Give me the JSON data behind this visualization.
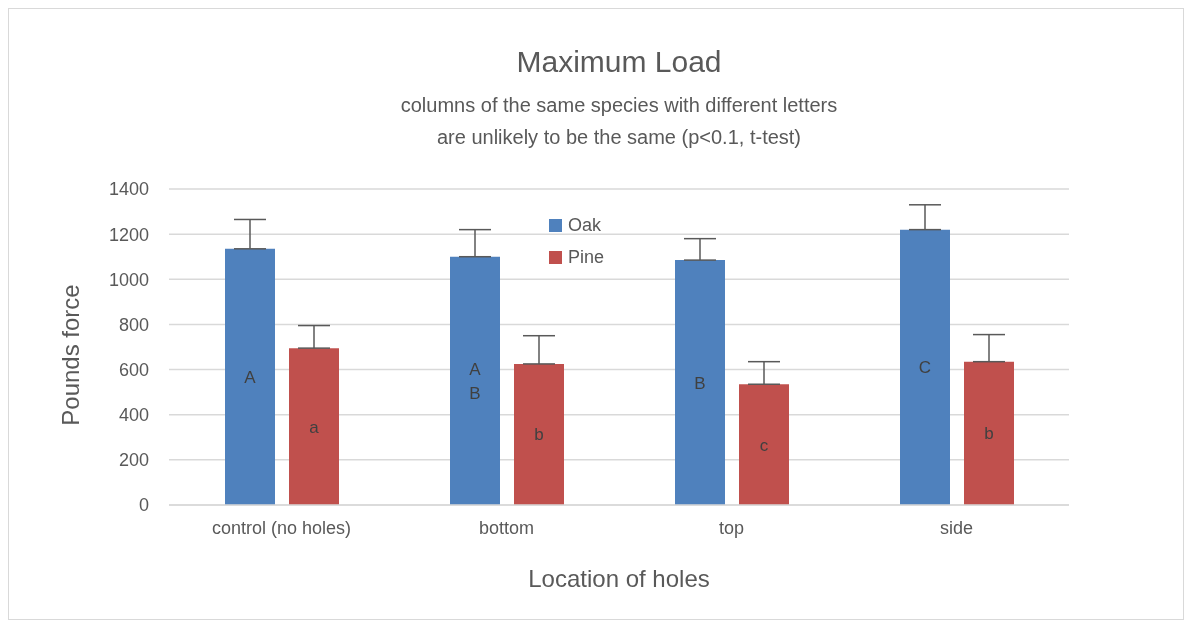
{
  "chart_data": {
    "type": "bar",
    "title": "Maximum Load",
    "subtitle": "columns of the same species with different letters\nare unlikely to be the same (p<0.1, t-test)",
    "xlabel": "Location of holes",
    "ylabel": "Pounds force",
    "categories": [
      "control (no holes)",
      "bottom",
      "top",
      "side"
    ],
    "series": [
      {
        "name": "Oak",
        "color": "#4f81bd",
        "values": [
          1135,
          1100,
          1085,
          1220
        ],
        "errors": [
          130,
          120,
          95,
          110
        ],
        "value_labels": [
          "A",
          "A\nB",
          "B",
          "C"
        ]
      },
      {
        "name": "Pine",
        "color": "#c0504d",
        "values": [
          695,
          625,
          535,
          635
        ],
        "errors": [
          100,
          125,
          100,
          120
        ],
        "value_labels": [
          "a",
          "b",
          "c",
          "b"
        ]
      }
    ],
    "ylim": [
      0,
      1400
    ],
    "yticks": [
      0,
      200,
      400,
      600,
      800,
      1000,
      1200,
      1400
    ],
    "grid": "y",
    "legend": "top"
  }
}
